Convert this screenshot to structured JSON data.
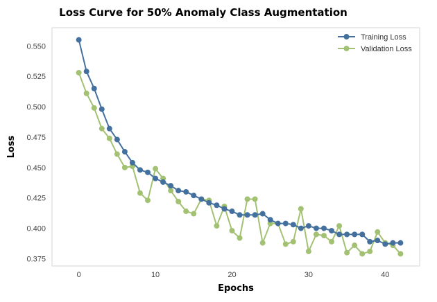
{
  "chart_data": {
    "type": "line",
    "title": "Loss Curve for 50% Anomaly Class Augmentation",
    "xlabel": "Epochs",
    "ylabel": "Loss",
    "xlim": [
      -3.5,
      44.5
    ],
    "ylim": [
      0.369,
      0.565
    ],
    "x_ticks": [
      0,
      10,
      20,
      30,
      40
    ],
    "y_ticks": [
      0.375,
      0.4,
      0.425,
      0.45,
      0.475,
      0.5,
      0.525,
      0.55
    ],
    "y_tick_labels": [
      "0.375",
      "0.400",
      "0.425",
      "0.450",
      "0.475",
      "0.500",
      "0.525",
      "0.550"
    ],
    "grid": false,
    "legend_position": "top-right",
    "x": [
      0,
      1,
      2,
      3,
      4,
      5,
      6,
      7,
      8,
      9,
      10,
      11,
      12,
      13,
      14,
      15,
      16,
      17,
      18,
      19,
      20,
      21,
      22,
      23,
      24,
      25,
      26,
      27,
      28,
      29,
      30,
      31,
      32,
      33,
      34,
      35,
      36,
      37,
      38,
      39,
      40,
      41,
      42
    ],
    "series": [
      {
        "name": "Training Loss",
        "color": "#44709e",
        "values": [
          0.555,
          0.529,
          0.515,
          0.498,
          0.482,
          0.473,
          0.463,
          0.454,
          0.448,
          0.446,
          0.441,
          0.438,
          0.435,
          0.431,
          0.43,
          0.427,
          0.424,
          0.421,
          0.419,
          0.416,
          0.414,
          0.411,
          0.411,
          0.411,
          0.412,
          0.407,
          0.404,
          0.404,
          0.403,
          0.4,
          0.402,
          0.4,
          0.4,
          0.398,
          0.395,
          0.395,
          0.395,
          0.395,
          0.389,
          0.39,
          0.387,
          0.388,
          0.388
        ]
      },
      {
        "name": "Validation Loss",
        "color": "#a3c172",
        "values": [
          0.528,
          0.511,
          0.499,
          0.482,
          0.474,
          0.461,
          0.45,
          0.451,
          0.429,
          0.423,
          0.449,
          0.441,
          0.431,
          0.422,
          0.414,
          0.412,
          0.424,
          0.423,
          0.402,
          0.418,
          0.398,
          0.392,
          0.424,
          0.424,
          0.388,
          0.404,
          0.404,
          0.387,
          0.389,
          0.416,
          0.381,
          0.395,
          0.394,
          0.389,
          0.402,
          0.38,
          0.386,
          0.379,
          0.381,
          0.397,
          0.388,
          0.386,
          0.379
        ]
      }
    ]
  }
}
